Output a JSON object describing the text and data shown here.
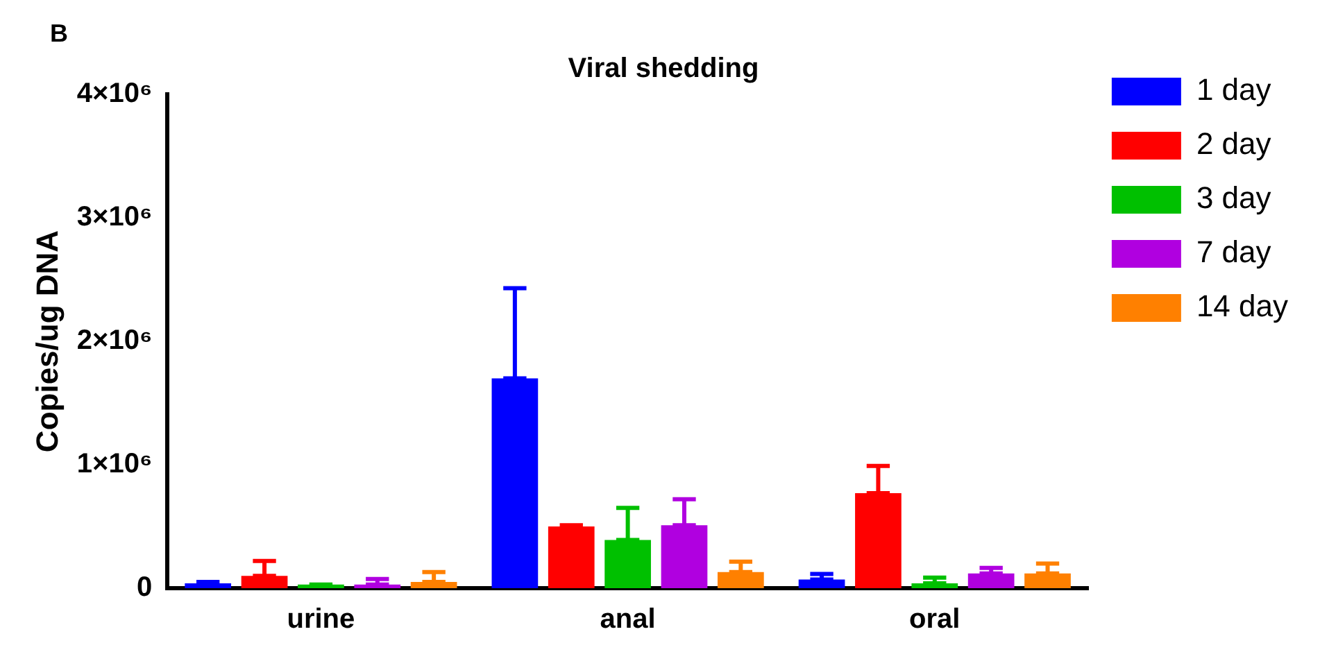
{
  "chart_data": {
    "type": "bar",
    "title": "Viral shedding",
    "ylabel": "Copies/ug DNA",
    "annotations": [
      "B"
    ],
    "categories": [
      "urine",
      "anal",
      "oral"
    ],
    "series": [
      {
        "name": "1 day",
        "color": "#0000ff",
        "values": [
          40000,
          1700000,
          70000
        ],
        "errors": [
          [
            40000,
            50000
          ],
          [
            1700000,
            2430000
          ],
          [
            70000,
            115000
          ]
        ]
      },
      {
        "name": "2 day",
        "color": "#ff0000",
        "values": [
          100000,
          500000,
          770000
        ],
        "errors": [
          [
            100000,
            220000
          ],
          [
            500000,
            510000
          ],
          [
            770000,
            990000
          ]
        ]
      },
      {
        "name": "3 day",
        "color": "#00c000",
        "values": [
          30000,
          390000,
          40000
        ],
        "errors": [
          [
            30000,
            30000
          ],
          [
            390000,
            650000
          ],
          [
            40000,
            85000
          ]
        ]
      },
      {
        "name": "7 day",
        "color": "#b000e0",
        "values": [
          30000,
          510000,
          120000
        ],
        "errors": [
          [
            30000,
            75000
          ],
          [
            510000,
            720000
          ],
          [
            120000,
            165000
          ]
        ]
      },
      {
        "name": "14 day",
        "color": "#ff8000",
        "values": [
          50000,
          130000,
          120000
        ],
        "errors": [
          [
            50000,
            130000
          ],
          [
            130000,
            215000
          ],
          [
            120000,
            200000
          ]
        ]
      }
    ],
    "ylim": [
      0,
      4000000
    ],
    "yticks": [
      0,
      {
        "value": 1000000,
        "label": "1×10⁶"
      },
      {
        "value": 2000000,
        "label": "2×10⁶"
      },
      {
        "value": 3000000,
        "label": "3×10⁶"
      },
      {
        "value": 4000000,
        "label": "4×10⁶"
      }
    ],
    "grid": false,
    "legend": "right"
  }
}
